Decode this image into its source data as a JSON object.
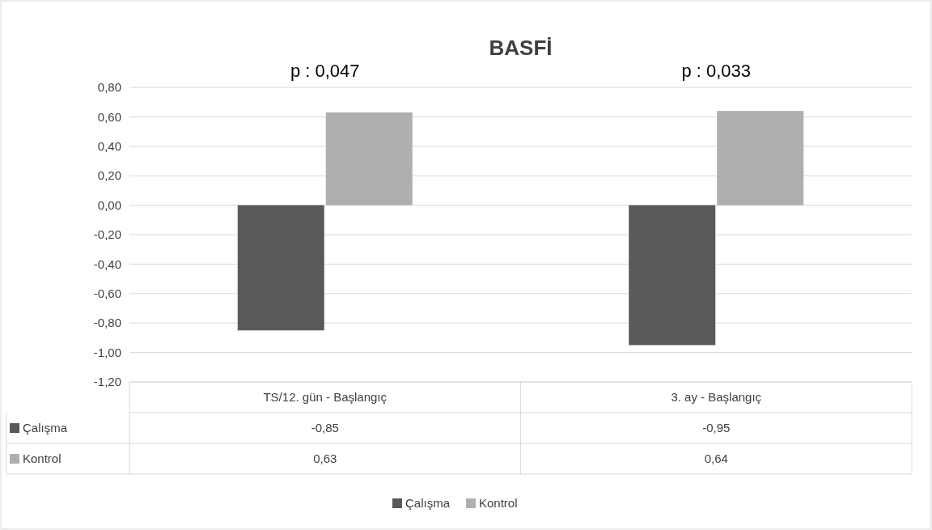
{
  "chart_data": {
    "type": "bar",
    "title": "BASFİ",
    "annotations": [
      "p : 0,047",
      "p : 0,033"
    ],
    "categories": [
      "TS/12. gün - Başlangıç",
      "3. ay - Başlangıç"
    ],
    "series": [
      {
        "name": "Çalışma",
        "color": "#595959",
        "values": [
          -0.85,
          -0.95
        ],
        "value_labels": [
          "-0,85",
          "-0,95"
        ]
      },
      {
        "name": "Kontrol",
        "color": "#afafaf",
        "values": [
          0.63,
          0.64
        ],
        "value_labels": [
          "0,63",
          "0,64"
        ]
      }
    ],
    "ylim": [
      -1.2,
      0.8
    ],
    "yticks": [
      {
        "value": 0.8,
        "label": "0,80"
      },
      {
        "value": 0.6,
        "label": "0,60"
      },
      {
        "value": 0.4,
        "label": "0,40"
      },
      {
        "value": 0.2,
        "label": "0,20"
      },
      {
        "value": 0,
        "label": "0,00"
      },
      {
        "value": -0.2,
        "label": "-0,20"
      },
      {
        "value": -0.4,
        "label": "-0,40"
      },
      {
        "value": -0.6,
        "label": "-0,60"
      },
      {
        "value": -0.8,
        "label": "-0,80"
      },
      {
        "value": -1,
        "label": "-1,00"
      },
      {
        "value": -1.2,
        "label": "-1,20"
      }
    ],
    "grid": "y",
    "legend": "bottom"
  }
}
